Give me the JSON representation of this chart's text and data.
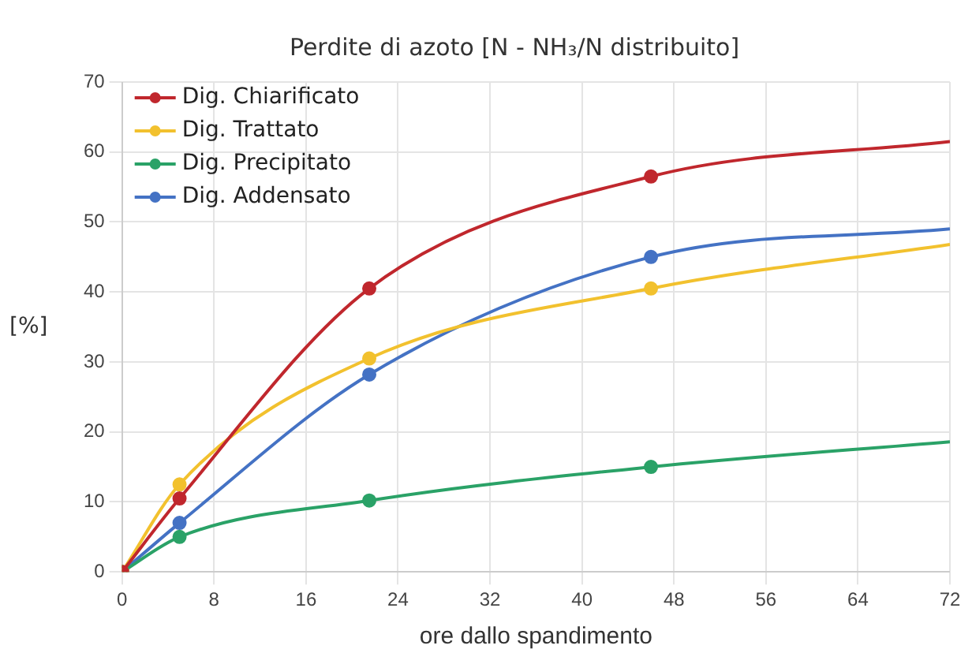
{
  "chart_data": {
    "type": "line",
    "title": "Perdite di azoto [N - NH₃/N distribuito]",
    "xlabel": "ore dallo spandimento",
    "ylabel": "[%]",
    "x": [
      0,
      5,
      21.5,
      46,
      72
    ],
    "series": [
      {
        "name": "Dig. Chiarificato",
        "color": "#c0272d",
        "values": [
          0,
          10.5,
          40.5,
          56.5,
          61.5
        ]
      },
      {
        "name": "Dig. Trattato",
        "color": "#f2c12e",
        "values": [
          0,
          12.5,
          30.5,
          40.5,
          46.8
        ]
      },
      {
        "name": "Dig. Precipitato",
        "color": "#2aa267",
        "values": [
          0,
          5,
          10.2,
          15,
          18.6
        ]
      },
      {
        "name": "Dig. Addensato",
        "color": "#4472c4",
        "values": [
          0,
          7,
          28.2,
          45,
          49
        ]
      }
    ],
    "xlim": [
      0,
      72
    ],
    "xticks": [
      0,
      8,
      16,
      24,
      32,
      40,
      48,
      56,
      64,
      72
    ],
    "ylim": [
      0,
      70
    ],
    "yticks": [
      0,
      10,
      20,
      30,
      40,
      50,
      60,
      70
    ],
    "grid": true,
    "legend": "top left",
    "marker": "circle",
    "line_style": "solid"
  }
}
